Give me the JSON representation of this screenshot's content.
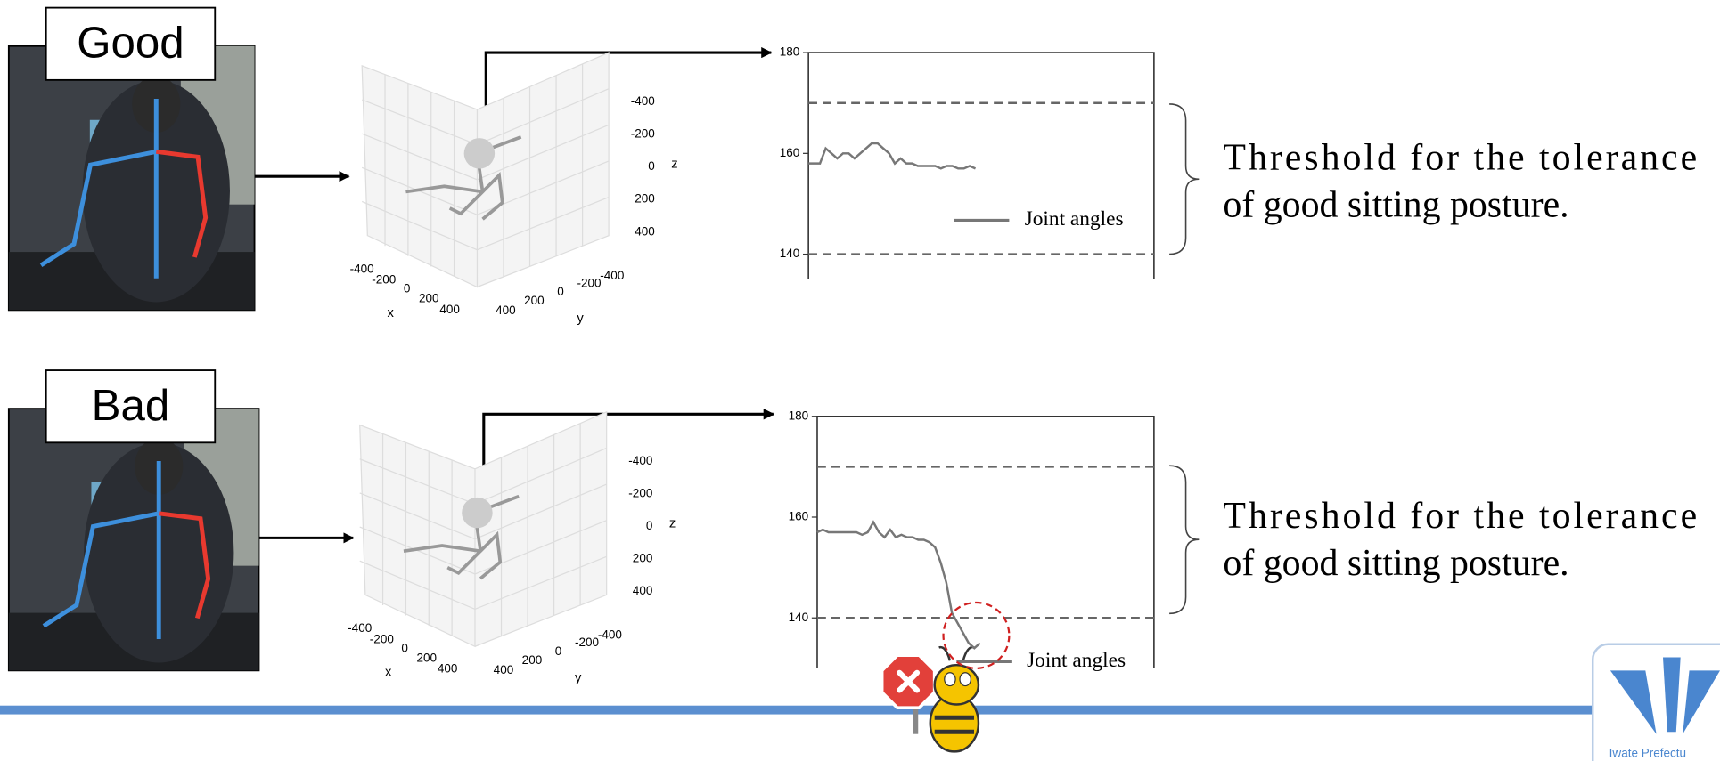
{
  "panels": [
    {
      "label": "Good",
      "plot3d": {
        "z_ticks": [
          -400,
          -200,
          0,
          200,
          400
        ],
        "z_label": "z",
        "x_ticks": [
          -400,
          -200,
          0,
          200,
          400
        ],
        "x_label": "x",
        "y_ticks": [
          400,
          200,
          0,
          -200,
          -400
        ],
        "y_label": "y"
      },
      "chart": {
        "type": "line",
        "ylim": [
          135,
          180
        ],
        "yticks": [
          180,
          160,
          140
        ],
        "xlim": [
          0,
          60
        ],
        "thresholds": [
          170,
          140
        ],
        "series": [
          {
            "name": "Joint angles",
            "color": "#777777",
            "values": [
              158,
              158,
              158,
              161,
              160,
              159,
              160,
              160,
              159,
              160,
              161,
              162,
              162,
              161,
              160,
              158,
              159,
              158,
              158,
              157.5,
              157.5,
              157.5,
              157.5,
              157,
              157.5,
              157.5,
              157,
              157,
              157.5,
              157
            ]
          }
        ]
      },
      "note_lines": [
        "Threshold for the tolerance",
        "of good sitting posture."
      ]
    },
    {
      "label": "Bad",
      "plot3d": {
        "z_ticks": [
          -400,
          -200,
          0,
          200,
          400
        ],
        "z_label": "z",
        "x_ticks": [
          -400,
          -200,
          0,
          200,
          400
        ],
        "x_label": "x",
        "y_ticks": [
          400,
          200,
          0,
          -200,
          -400
        ],
        "y_label": "y"
      },
      "chart": {
        "type": "line",
        "ylim": [
          130,
          180
        ],
        "yticks": [
          180,
          160,
          140
        ],
        "xlim": [
          0,
          60
        ],
        "thresholds": [
          170,
          140
        ],
        "series": [
          {
            "name": "Joint angles",
            "color": "#777777",
            "values": [
              157,
              157.5,
              157,
              157,
              157,
              157,
              157,
              157,
              156.5,
              157,
              159,
              157,
              156,
              157.5,
              156,
              156.5,
              156,
              156,
              155.5,
              155.5,
              155,
              154,
              151,
              147,
              141,
              139,
              137,
              135,
              134,
              135
            ]
          }
        ]
      },
      "note_lines": [
        "Threshold for the tolerance",
        "of good sitting posture."
      ]
    }
  ],
  "logo_text": "Iwate Prefectu"
}
